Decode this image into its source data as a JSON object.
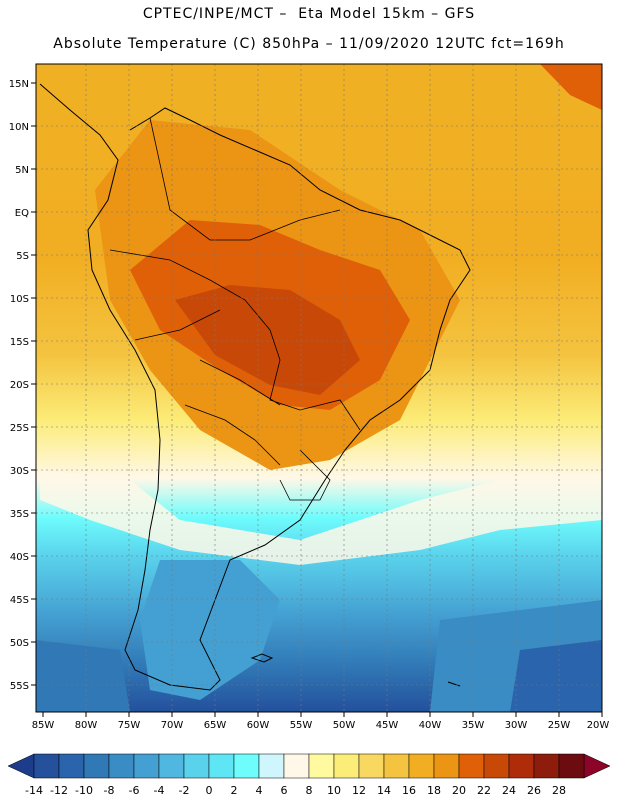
{
  "header": {
    "title_line1": "CPTEC/INPE/MCT –  Eta Model 15km – GFS",
    "title_line2": "Absolute Temperature (C) 850hPa – 11/09/2020 12UTC fct=169h"
  },
  "map": {
    "lon_labels": [
      "85W",
      "80W",
      "75W",
      "70W",
      "65W",
      "60W",
      "55W",
      "50W",
      "45W",
      "40W",
      "35W",
      "30W",
      "25W",
      "20W"
    ],
    "lat_labels": [
      "15N",
      "10N",
      "5N",
      "EQ",
      "5S",
      "10S",
      "15S",
      "20S",
      "25S",
      "30S",
      "35S",
      "40S",
      "45S",
      "50S",
      "55S"
    ]
  },
  "colorbar": {
    "labels": [
      "-14",
      "-12",
      "-10",
      "-8",
      "-6",
      "-4",
      "-2",
      "0",
      "2",
      "4",
      "6",
      "8",
      "10",
      "12",
      "14",
      "16",
      "18",
      "20",
      "22",
      "24",
      "26",
      "28"
    ],
    "colors": [
      "#1e3c8c",
      "#24509c",
      "#2a64ac",
      "#3078b6",
      "#3a8cc4",
      "#44a0d2",
      "#50b8e0",
      "#5ad2ec",
      "#5ee6f4",
      "#6efcfc",
      "#cef6fc",
      "#fff8e8",
      "#fffaa0",
      "#fcec78",
      "#f8d860",
      "#f4c440",
      "#f2ae22",
      "#ec9414",
      "#e06008",
      "#c84808",
      "#ae2c0a",
      "#8e1c0c",
      "#6c0c10",
      "#8c0428"
    ]
  }
}
